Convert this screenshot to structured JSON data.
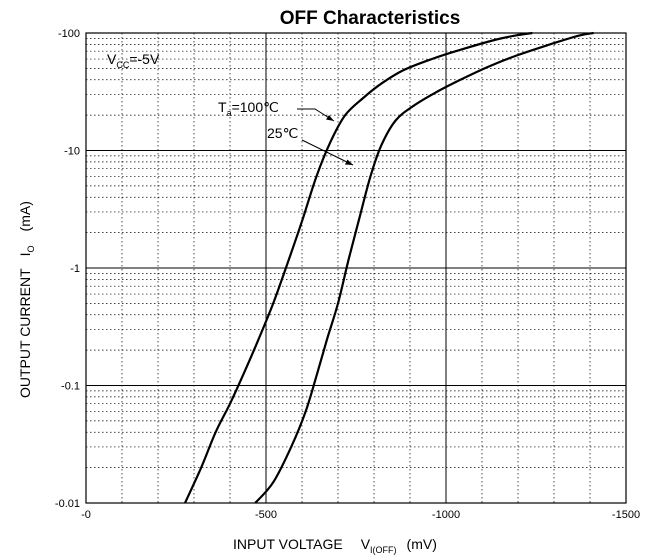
{
  "chart_data": {
    "type": "line",
    "title": "OFF Characteristics",
    "xlabel": {
      "main": "INPUT VOLTAGE",
      "symbol": "V",
      "subscript": "I(OFF)",
      "unit": "(mV)"
    },
    "ylabel": {
      "main": "OUTPUT CURRENT",
      "symbol": "I",
      "subscript": "O",
      "unit": "(mA)"
    },
    "x_ticks": [
      "-0",
      "-500",
      "-1000",
      "-1500"
    ],
    "y_ticks": [
      "-100",
      "-10",
      "-1",
      "-0.1",
      "-0.01"
    ],
    "xlim": [
      0,
      -1500
    ],
    "ylim": [
      -0.01,
      -100
    ],
    "y_scale": "log",
    "grid": true,
    "condition": {
      "symbol": "V",
      "subscript": "CC",
      "value": "=-5V"
    },
    "series": [
      {
        "name": "Ta=100℃",
        "label": {
          "symbol": "T",
          "subscript": "a",
          "value": "=100℃"
        },
        "color": "#000000",
        "x": [
          -275,
          -320,
          -360,
          -400,
          -440,
          -480,
          -520,
          -560,
          -600,
          -640,
          -680,
          -720,
          -770,
          -820,
          -880,
          -960,
          -1040,
          -1140,
          -1200,
          -1240
        ],
        "y": [
          -0.01,
          -0.02,
          -0.04,
          -0.07,
          -0.13,
          -0.25,
          -0.5,
          -1.1,
          -2.5,
          -6,
          -12,
          -20,
          -28,
          -37,
          -48,
          -60,
          -72,
          -88,
          -96,
          -100
        ]
      },
      {
        "name": "25℃",
        "label": {
          "symbol": "",
          "subscript": "",
          "value": "25℃"
        },
        "color": "#000000",
        "x": [
          -470,
          -520,
          -570,
          -610,
          -640,
          -670,
          -700,
          -730,
          -760,
          -790,
          -820,
          -860,
          -910,
          -970,
          -1040,
          -1120,
          -1200,
          -1300,
          -1370,
          -1410
        ],
        "y": [
          -0.01,
          -0.015,
          -0.03,
          -0.06,
          -0.12,
          -0.25,
          -0.5,
          -1.2,
          -2.7,
          -6,
          -11,
          -18,
          -24,
          -31,
          -40,
          -52,
          -65,
          -82,
          -95,
          -100
        ]
      }
    ]
  }
}
